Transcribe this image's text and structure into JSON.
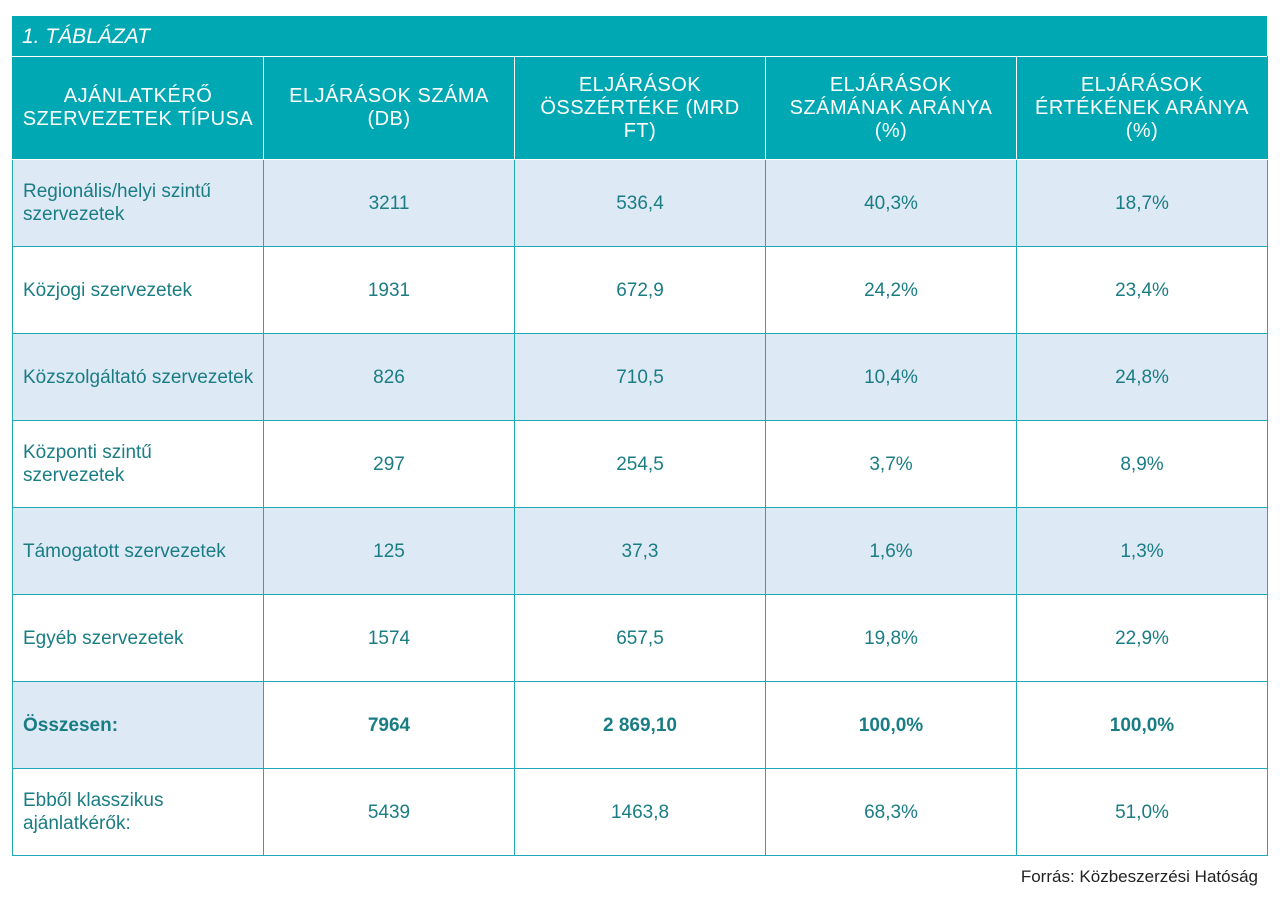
{
  "caption": "1. TÁBLÁZAT",
  "headers": [
    "AJÁNLATKÉRŐ SZERVEZETEK TÍPUSA",
    "ELJÁRÁSOK SZÁMA (DB)",
    "ELJÁRÁSOK ÖSSZÉRTÉKE (MRD FT)",
    "ELJÁRÁSOK SZÁMÁNAK ARÁNYA (%)",
    "ELJÁRÁSOK ÉRTÉKÉNEK ARÁNYA (%)"
  ],
  "rows": [
    [
      "Regionális/helyi szintű szervezetek",
      "3211",
      "536,4",
      "40,3%",
      "18,7%"
    ],
    [
      "Közjogi szervezetek",
      "1931",
      "672,9",
      "24,2%",
      "23,4%"
    ],
    [
      "Közszolgáltató szervezetek",
      "826",
      "710,5",
      "10,4%",
      "24,8%"
    ],
    [
      "Központi szintű szervezetek",
      "297",
      "254,5",
      "3,7%",
      "8,9%"
    ],
    [
      "Támogatott szervezetek",
      "125",
      "37,3",
      "1,6%",
      "1,3%"
    ],
    [
      "Egyéb szervezetek",
      "1574",
      "657,5",
      "19,8%",
      "22,9%"
    ],
    [
      "Összesen:",
      "7964",
      "2 869,10",
      "100,0%",
      "100,0%"
    ],
    [
      "Ebből klasszikus ajánlatkérők:",
      "5439",
      "1463,8",
      "68,3%",
      "51,0%"
    ]
  ],
  "source": "Forrás: Közbeszerzési Hatóság",
  "colors": {
    "header_bg": "#00a8b4",
    "shaded_row_bg": "#dde9f5",
    "text": "#1a7d84"
  }
}
